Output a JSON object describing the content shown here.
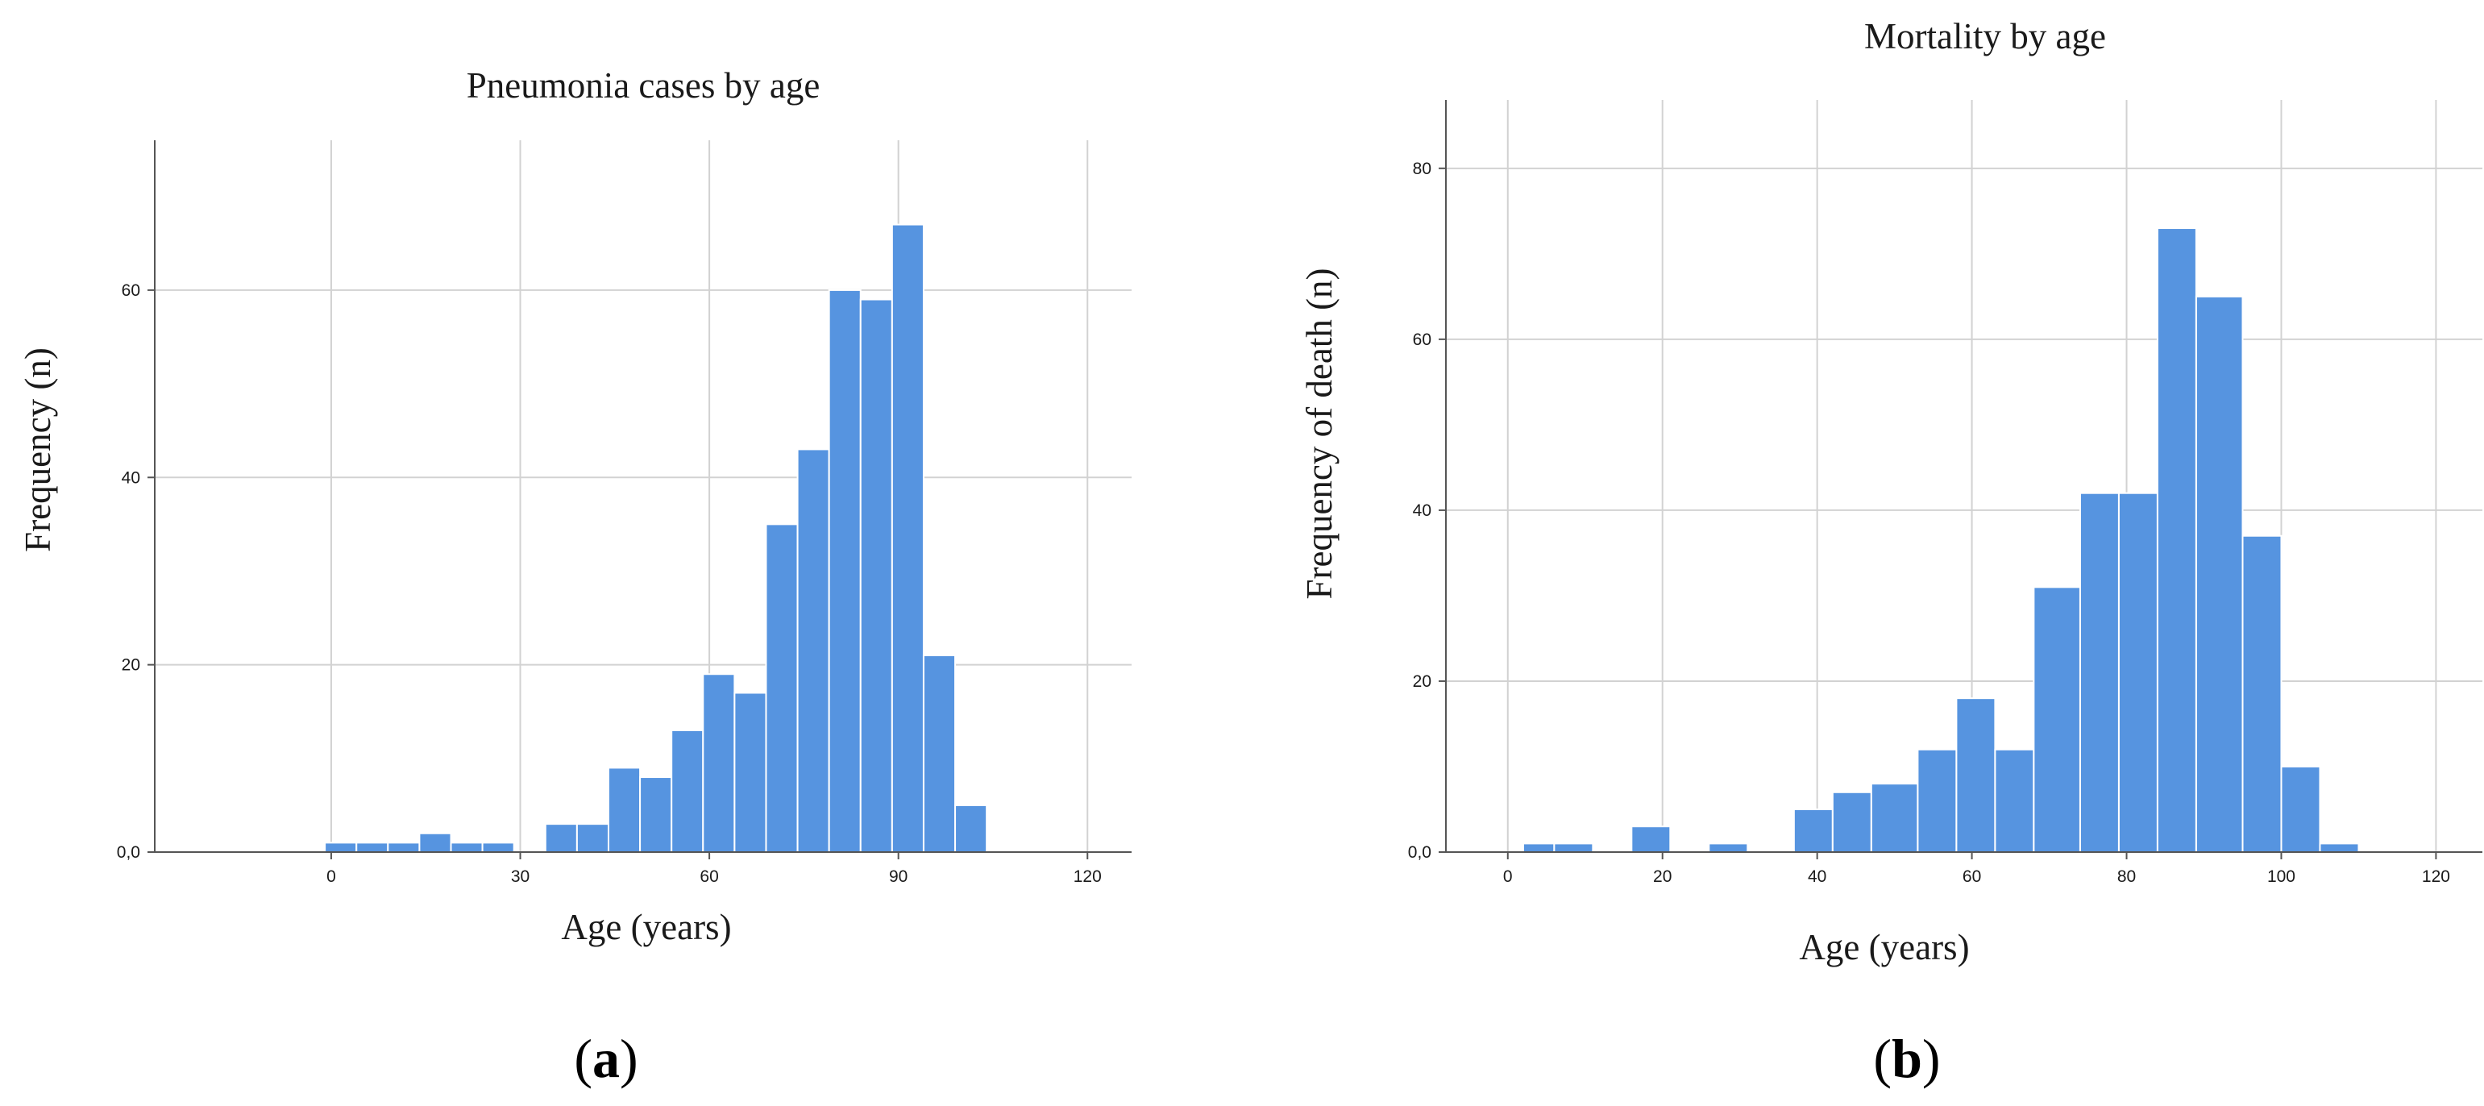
{
  "chart_data": [
    {
      "type": "bar",
      "panel": "(a)",
      "panel_letter": "a",
      "title": "Pneumonia cases by age",
      "xlabel": "Age (years)",
      "ylabel": "Frequency (n)",
      "xlim": [
        -28,
        127
      ],
      "ylim": [
        0,
        76
      ],
      "xticks": [
        0,
        30,
        60,
        90,
        120
      ],
      "yticks": [
        0,
        20,
        40,
        60
      ],
      "ytick_labels": [
        "0,0",
        "20",
        "40",
        "60"
      ],
      "grid": true,
      "bar_color": "#5694e0",
      "bins": [
        {
          "start": -1,
          "end": 4,
          "value": 1
        },
        {
          "start": 4,
          "end": 9,
          "value": 1
        },
        {
          "start": 9,
          "end": 14,
          "value": 1
        },
        {
          "start": 14,
          "end": 19,
          "value": 2
        },
        {
          "start": 19,
          "end": 24,
          "value": 1
        },
        {
          "start": 24,
          "end": 29,
          "value": 1
        },
        {
          "start": 34,
          "end": 39,
          "value": 3
        },
        {
          "start": 39,
          "end": 44,
          "value": 3
        },
        {
          "start": 44,
          "end": 49,
          "value": 9
        },
        {
          "start": 49,
          "end": 54,
          "value": 8
        },
        {
          "start": 54,
          "end": 59,
          "value": 13
        },
        {
          "start": 59,
          "end": 64,
          "value": 19
        },
        {
          "start": 64,
          "end": 69,
          "value": 17
        },
        {
          "start": 69,
          "end": 74,
          "value": 35
        },
        {
          "start": 74,
          "end": 79,
          "value": 43
        },
        {
          "start": 79,
          "end": 84,
          "value": 60
        },
        {
          "start": 84,
          "end": 89,
          "value": 59
        },
        {
          "start": 89,
          "end": 94,
          "value": 67
        },
        {
          "start": 94,
          "end": 99,
          "value": 21
        },
        {
          "start": 99,
          "end": 104,
          "value": 5
        }
      ]
    },
    {
      "type": "bar",
      "panel": "(b)",
      "panel_letter": "b",
      "title": "Mortality by age",
      "xlabel": "Age (years)",
      "ylabel": "Frequency of death (n)",
      "xlim": [
        -8,
        126
      ],
      "ylim": [
        0,
        88
      ],
      "xticks": [
        0,
        20,
        40,
        60,
        80,
        100,
        120
      ],
      "yticks": [
        0,
        20,
        40,
        60,
        80
      ],
      "ytick_labels": [
        "0,0",
        "20",
        "40",
        "60",
        "80"
      ],
      "grid": true,
      "bar_color": "#5694e0",
      "bins": [
        {
          "start": 2,
          "end": 6,
          "value": 1
        },
        {
          "start": 6,
          "end": 11,
          "value": 1
        },
        {
          "start": 16,
          "end": 21,
          "value": 3
        },
        {
          "start": 26,
          "end": 31,
          "value": 1
        },
        {
          "start": 37,
          "end": 42,
          "value": 5
        },
        {
          "start": 42,
          "end": 47,
          "value": 7
        },
        {
          "start": 47,
          "end": 53,
          "value": 8
        },
        {
          "start": 53,
          "end": 58,
          "value": 12
        },
        {
          "start": 58,
          "end": 63,
          "value": 18
        },
        {
          "start": 63,
          "end": 68,
          "value": 12
        },
        {
          "start": 68,
          "end": 74,
          "value": 31
        },
        {
          "start": 74,
          "end": 79,
          "value": 42
        },
        {
          "start": 79,
          "end": 84,
          "value": 42
        },
        {
          "start": 84,
          "end": 89,
          "value": 73
        },
        {
          "start": 89,
          "end": 95,
          "value": 65
        },
        {
          "start": 95,
          "end": 100,
          "value": 37
        },
        {
          "start": 100,
          "end": 105,
          "value": 10
        },
        {
          "start": 105,
          "end": 110,
          "value": 1
        }
      ]
    }
  ]
}
